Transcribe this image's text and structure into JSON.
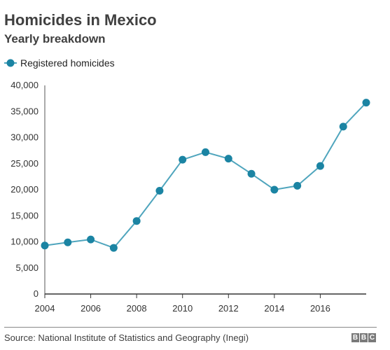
{
  "header": {
    "title": "Homicides in Mexico",
    "subtitle": "Yearly breakdown"
  },
  "footer": {
    "source": "Source: National Institute of Statistics and Geography (Inegi)",
    "logo_letters": [
      "B",
      "B",
      "C"
    ]
  },
  "colors": {
    "series": "#1b84a3",
    "line": "#4fa5bd",
    "axis": "#333333"
  },
  "chart_data": {
    "type": "line",
    "title": "Homicides in Mexico",
    "subtitle": "Yearly breakdown",
    "legend_position": "top-left",
    "grid": false,
    "xlim": [
      2004,
      2018
    ],
    "ylim": [
      0,
      40000
    ],
    "x_ticks": [
      2004,
      2006,
      2008,
      2010,
      2012,
      2014,
      2016
    ],
    "x_tick_labels": [
      "2004",
      "2006",
      "2008",
      "2010",
      "2012",
      "2014",
      "2016"
    ],
    "y_ticks": [
      0,
      5000,
      10000,
      15000,
      20000,
      25000,
      30000,
      35000,
      40000
    ],
    "y_tick_labels": [
      "0",
      "5,000",
      "10,000",
      "15,000",
      "20,000",
      "25,000",
      "30,000",
      "35,000",
      "40,000"
    ],
    "series": [
      {
        "name": "Registered homicides",
        "x": [
          2004,
          2005,
          2006,
          2007,
          2008,
          2009,
          2010,
          2011,
          2012,
          2013,
          2014,
          2015,
          2016,
          2017,
          2018
        ],
        "y": [
          9300,
          9900,
          10450,
          8850,
          14000,
          19800,
          25750,
          27200,
          25950,
          23050,
          20000,
          20750,
          24550,
          32100,
          36700
        ]
      }
    ]
  }
}
